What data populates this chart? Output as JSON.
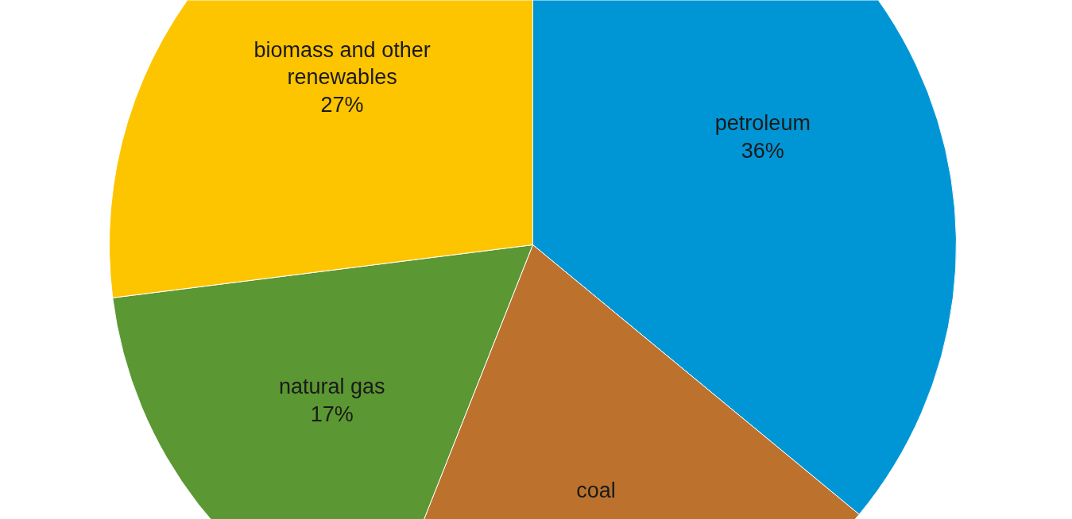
{
  "chart_data": {
    "type": "pie",
    "categories": [
      "petroleum",
      "coal",
      "natural gas",
      "biomass and other renewables"
    ],
    "values": [
      36,
      20,
      17,
      27
    ],
    "value_labels": [
      "36%",
      null,
      "17%",
      "27%"
    ],
    "colors": [
      "#0096d6",
      "#bc722c",
      "#5b9732",
      "#fdc400"
    ]
  }
}
